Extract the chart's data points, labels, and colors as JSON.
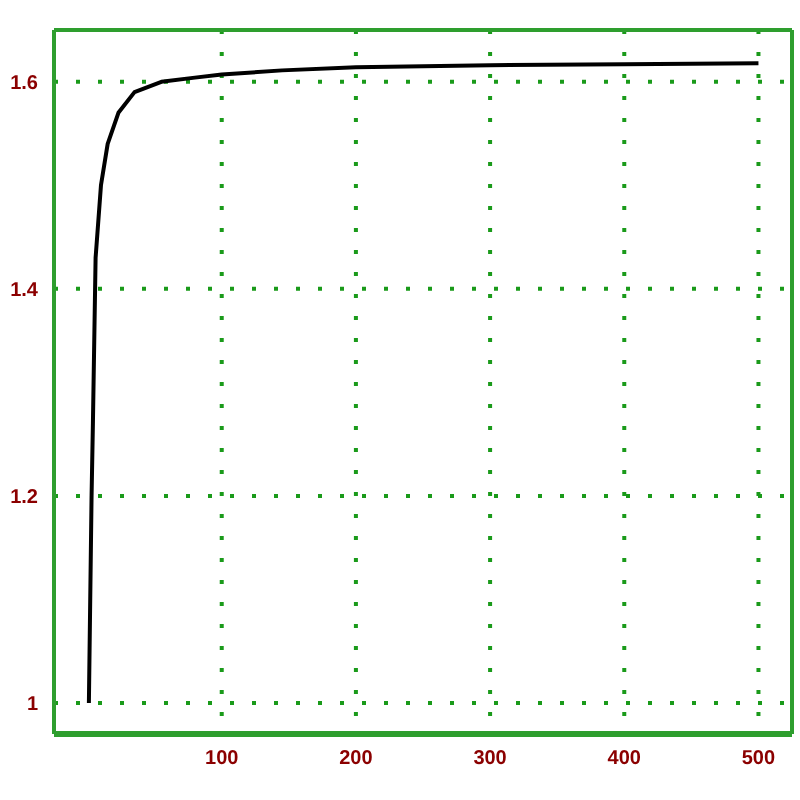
{
  "chart_data": {
    "type": "line",
    "x": [
      1,
      3,
      4,
      6,
      10,
      15,
      23,
      35,
      55,
      80,
      100,
      145,
      200,
      300,
      400,
      500
    ],
    "series": [
      {
        "color": "#000000",
        "values": [
          1,
          1.2,
          1.27,
          1.43,
          1.5,
          1.54,
          1.57,
          1.59,
          1.6,
          1.604,
          1.607,
          1.611,
          1.614,
          1.616,
          1.617,
          1.618
        ]
      }
    ],
    "xlim": [
      -25,
      525
    ],
    "xticks": [
      100,
      200,
      300,
      400,
      500
    ],
    "ylim": [
      0.97,
      1.65
    ],
    "yticks": [
      1,
      1.2,
      1.4,
      1.6
    ],
    "grid": true,
    "legend": false,
    "marker": "none",
    "line_style": "solid"
  }
}
